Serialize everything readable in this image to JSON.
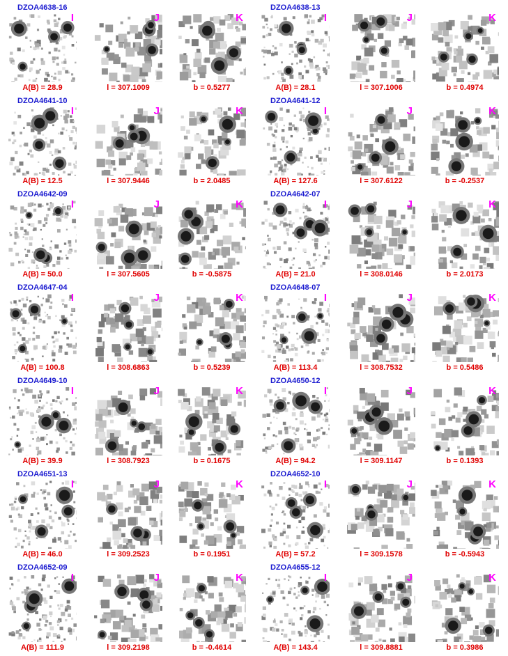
{
  "objects": [
    {
      "name": "DZOA4638-16",
      "panels": [
        {
          "band": "I",
          "caption": "A(B) = 28.9"
        },
        {
          "band": "J",
          "caption": "l = 307.1009"
        },
        {
          "band": "K",
          "caption": "b = 0.5277"
        }
      ]
    },
    {
      "name": "DZOA4638-13",
      "panels": [
        {
          "band": "I",
          "caption": "A(B) = 28.1"
        },
        {
          "band": "J",
          "caption": "l = 307.1006"
        },
        {
          "band": "K",
          "caption": "b = 0.4974"
        }
      ]
    },
    {
      "name": "DZOA4641-10",
      "panels": [
        {
          "band": "I",
          "caption": "A(B) = 12.5"
        },
        {
          "band": "J",
          "caption": "l = 307.9446"
        },
        {
          "band": "K",
          "caption": "b = 2.0485"
        }
      ]
    },
    {
      "name": "DZOA4641-12",
      "panels": [
        {
          "band": "I",
          "caption": "A(B) = 127.6"
        },
        {
          "band": "J",
          "caption": "l = 307.6122"
        },
        {
          "band": "K",
          "caption": "b = -0.2537"
        }
      ]
    },
    {
      "name": "DZOA4642-09",
      "panels": [
        {
          "band": "I",
          "caption": "A(B) = 50.0"
        },
        {
          "band": "J",
          "caption": "l = 307.5605"
        },
        {
          "band": "K",
          "caption": "b = -0.5875"
        }
      ]
    },
    {
      "name": "DZOA4642-07",
      "panels": [
        {
          "band": "I",
          "caption": "A(B) = 21.0"
        },
        {
          "band": "J",
          "caption": "l = 308.0146"
        },
        {
          "band": "K",
          "caption": "b = 2.0173"
        }
      ]
    },
    {
      "name": "DZOA4647-04",
      "panels": [
        {
          "band": "I",
          "caption": "A(B) = 100.8"
        },
        {
          "band": "J",
          "caption": "l = 308.6863"
        },
        {
          "band": "K",
          "caption": "b = 0.5239"
        }
      ]
    },
    {
      "name": "DZOA4648-07",
      "panels": [
        {
          "band": "I",
          "caption": "A(B) = 113.4"
        },
        {
          "band": "J",
          "caption": "l = 308.7532"
        },
        {
          "band": "K",
          "caption": "b = 0.5486"
        }
      ]
    },
    {
      "name": "DZOA4649-10",
      "panels": [
        {
          "band": "I",
          "caption": "A(B) = 39.9"
        },
        {
          "band": "J",
          "caption": "l = 308.7923"
        },
        {
          "band": "K",
          "caption": "b = 0.1675"
        }
      ]
    },
    {
      "name": "DZOA4650-12",
      "panels": [
        {
          "band": "I",
          "caption": "A(B) = 94.2"
        },
        {
          "band": "J",
          "caption": "l = 309.1147"
        },
        {
          "band": "K",
          "caption": "b = 0.1393"
        }
      ]
    },
    {
      "name": "DZOA4651-13",
      "panels": [
        {
          "band": "I",
          "caption": "A(B) = 46.0"
        },
        {
          "band": "J",
          "caption": "l = 309.2523"
        },
        {
          "band": "K",
          "caption": "b = 0.1951"
        }
      ]
    },
    {
      "name": "DZOA4652-10",
      "panels": [
        {
          "band": "I",
          "caption": "A(B) = 57.2"
        },
        {
          "band": "J",
          "caption": "l = 309.1578"
        },
        {
          "band": "K",
          "caption": "b = -0.5943"
        }
      ]
    },
    {
      "name": "DZOA4652-09",
      "panels": [
        {
          "band": "I",
          "caption": "A(B) = 111.9"
        },
        {
          "band": "J",
          "caption": "l = 309.2198"
        },
        {
          "band": "K",
          "caption": "b = -0.4614"
        }
      ]
    },
    {
      "name": "DZOA4655-12",
      "panels": [
        {
          "band": "I",
          "caption": "A(B) = 143.4"
        },
        {
          "band": "J",
          "caption": "l = 309.8881"
        },
        {
          "band": "K",
          "caption": "b = 0.3986"
        }
      ]
    }
  ]
}
